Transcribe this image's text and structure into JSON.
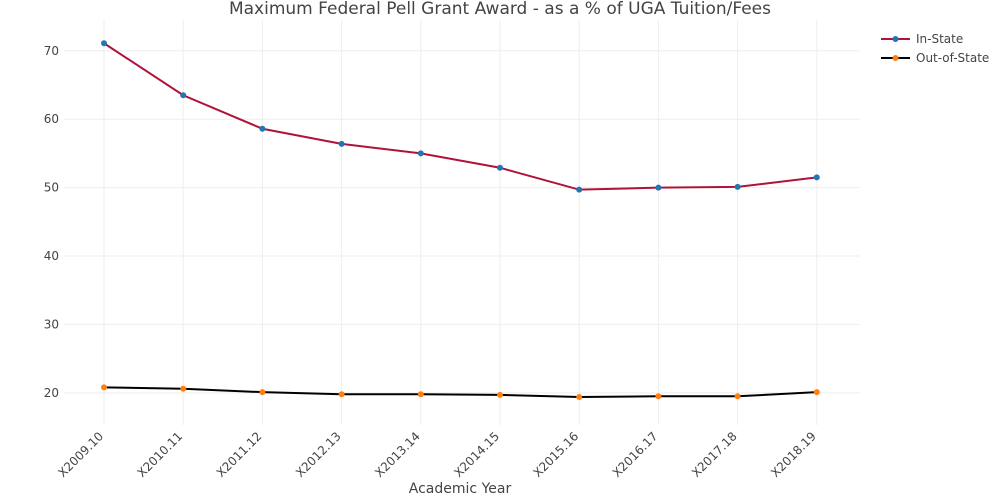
{
  "chart_data": {
    "type": "line",
    "title": "Maximum Federal Pell Grant Award - as a % of UGA Tuition/Fees",
    "xlabel": "Academic Year",
    "ylabel": "",
    "categories": [
      "X2009.10",
      "X2010.11",
      "X2011.12",
      "X2012.13",
      "X2013.14",
      "X2014.15",
      "X2015.16",
      "X2016.17",
      "X2017.18",
      "X2018.19"
    ],
    "yticks": [
      20,
      30,
      40,
      50,
      60,
      70
    ],
    "ylim": [
      15.3,
      74.5
    ],
    "grid": true,
    "legend_position": "top-right",
    "series": [
      {
        "name": "In-State",
        "line_color": "#b0123a",
        "marker_color": "#1f77b4",
        "values": [
          71.1,
          63.5,
          58.6,
          56.4,
          55.0,
          52.9,
          49.7,
          50.0,
          50.1,
          51.5
        ]
      },
      {
        "name": "Out-of-State",
        "line_color": "#000000",
        "marker_color": "#ff7f0e",
        "values": [
          20.8,
          20.6,
          20.1,
          19.8,
          19.8,
          19.7,
          19.4,
          19.5,
          19.5,
          20.1
        ]
      }
    ]
  }
}
